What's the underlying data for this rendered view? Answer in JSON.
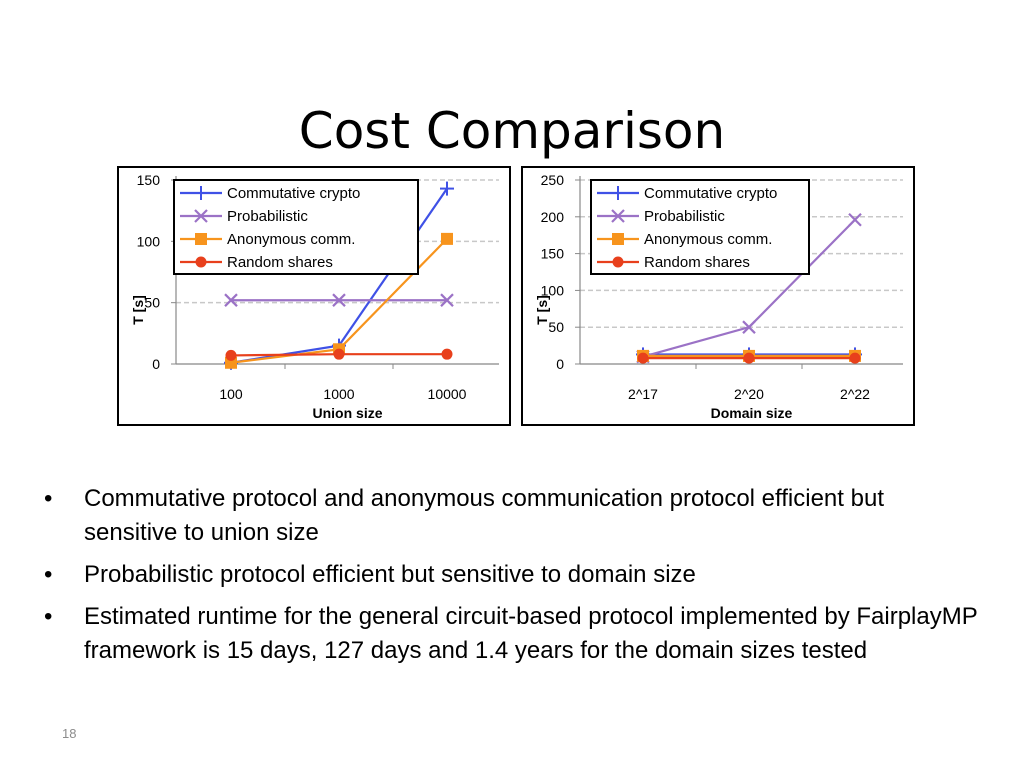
{
  "slide": {
    "title": "Cost Comparison",
    "page_number": "18",
    "bullets": [
      "Commutative protocol and anonymous communication protocol efficient but sensitive to union size",
      "Probabilistic protocol efficient but sensitive to domain size",
      "Estimated runtime for the general circuit-based protocol implemented by FairplayMP framework is 15 days, 127 days and 1.4 years for the domain sizes tested"
    ]
  },
  "chart_data": [
    {
      "type": "line",
      "xlabel": "Union size",
      "ylabel": "T [s]",
      "categories": [
        "100",
        "1000",
        "10000"
      ],
      "yticks": [
        0,
        50,
        100,
        150
      ],
      "ylim": [
        0,
        150
      ],
      "grid": "horizontal-dashed",
      "legend_position": "top-left",
      "series": [
        {
          "name": "Commutative crypto",
          "values": [
            1,
            15,
            143
          ],
          "color": "#3f51e6",
          "marker": "plus"
        },
        {
          "name": "Probabilistic",
          "values": [
            52,
            52,
            52
          ],
          "color": "#9b72c6",
          "marker": "x"
        },
        {
          "name": "Anonymous comm.",
          "values": [
            1,
            12,
            102
          ],
          "color": "#f7941d",
          "marker": "square"
        },
        {
          "name": "Random shares",
          "values": [
            7,
            8,
            8
          ],
          "color": "#e8401c",
          "marker": "circle"
        }
      ]
    },
    {
      "type": "line",
      "xlabel": "Domain size",
      "ylabel": "T [s]",
      "categories": [
        "2^17",
        "2^20",
        "2^22"
      ],
      "yticks": [
        0,
        50,
        100,
        150,
        200,
        250
      ],
      "ylim": [
        0,
        250
      ],
      "grid": "horizontal-dashed",
      "legend_position": "top-left",
      "series": [
        {
          "name": "Commutative crypto",
          "values": [
            13,
            13,
            13
          ],
          "color": "#3f51e6",
          "marker": "plus"
        },
        {
          "name": "Probabilistic",
          "values": [
            10,
            50,
            196
          ],
          "color": "#9b72c6",
          "marker": "x"
        },
        {
          "name": "Anonymous comm.",
          "values": [
            11,
            11,
            11
          ],
          "color": "#f7941d",
          "marker": "square"
        },
        {
          "name": "Random shares",
          "values": [
            8,
            8,
            8
          ],
          "color": "#e8401c",
          "marker": "circle"
        }
      ]
    }
  ]
}
